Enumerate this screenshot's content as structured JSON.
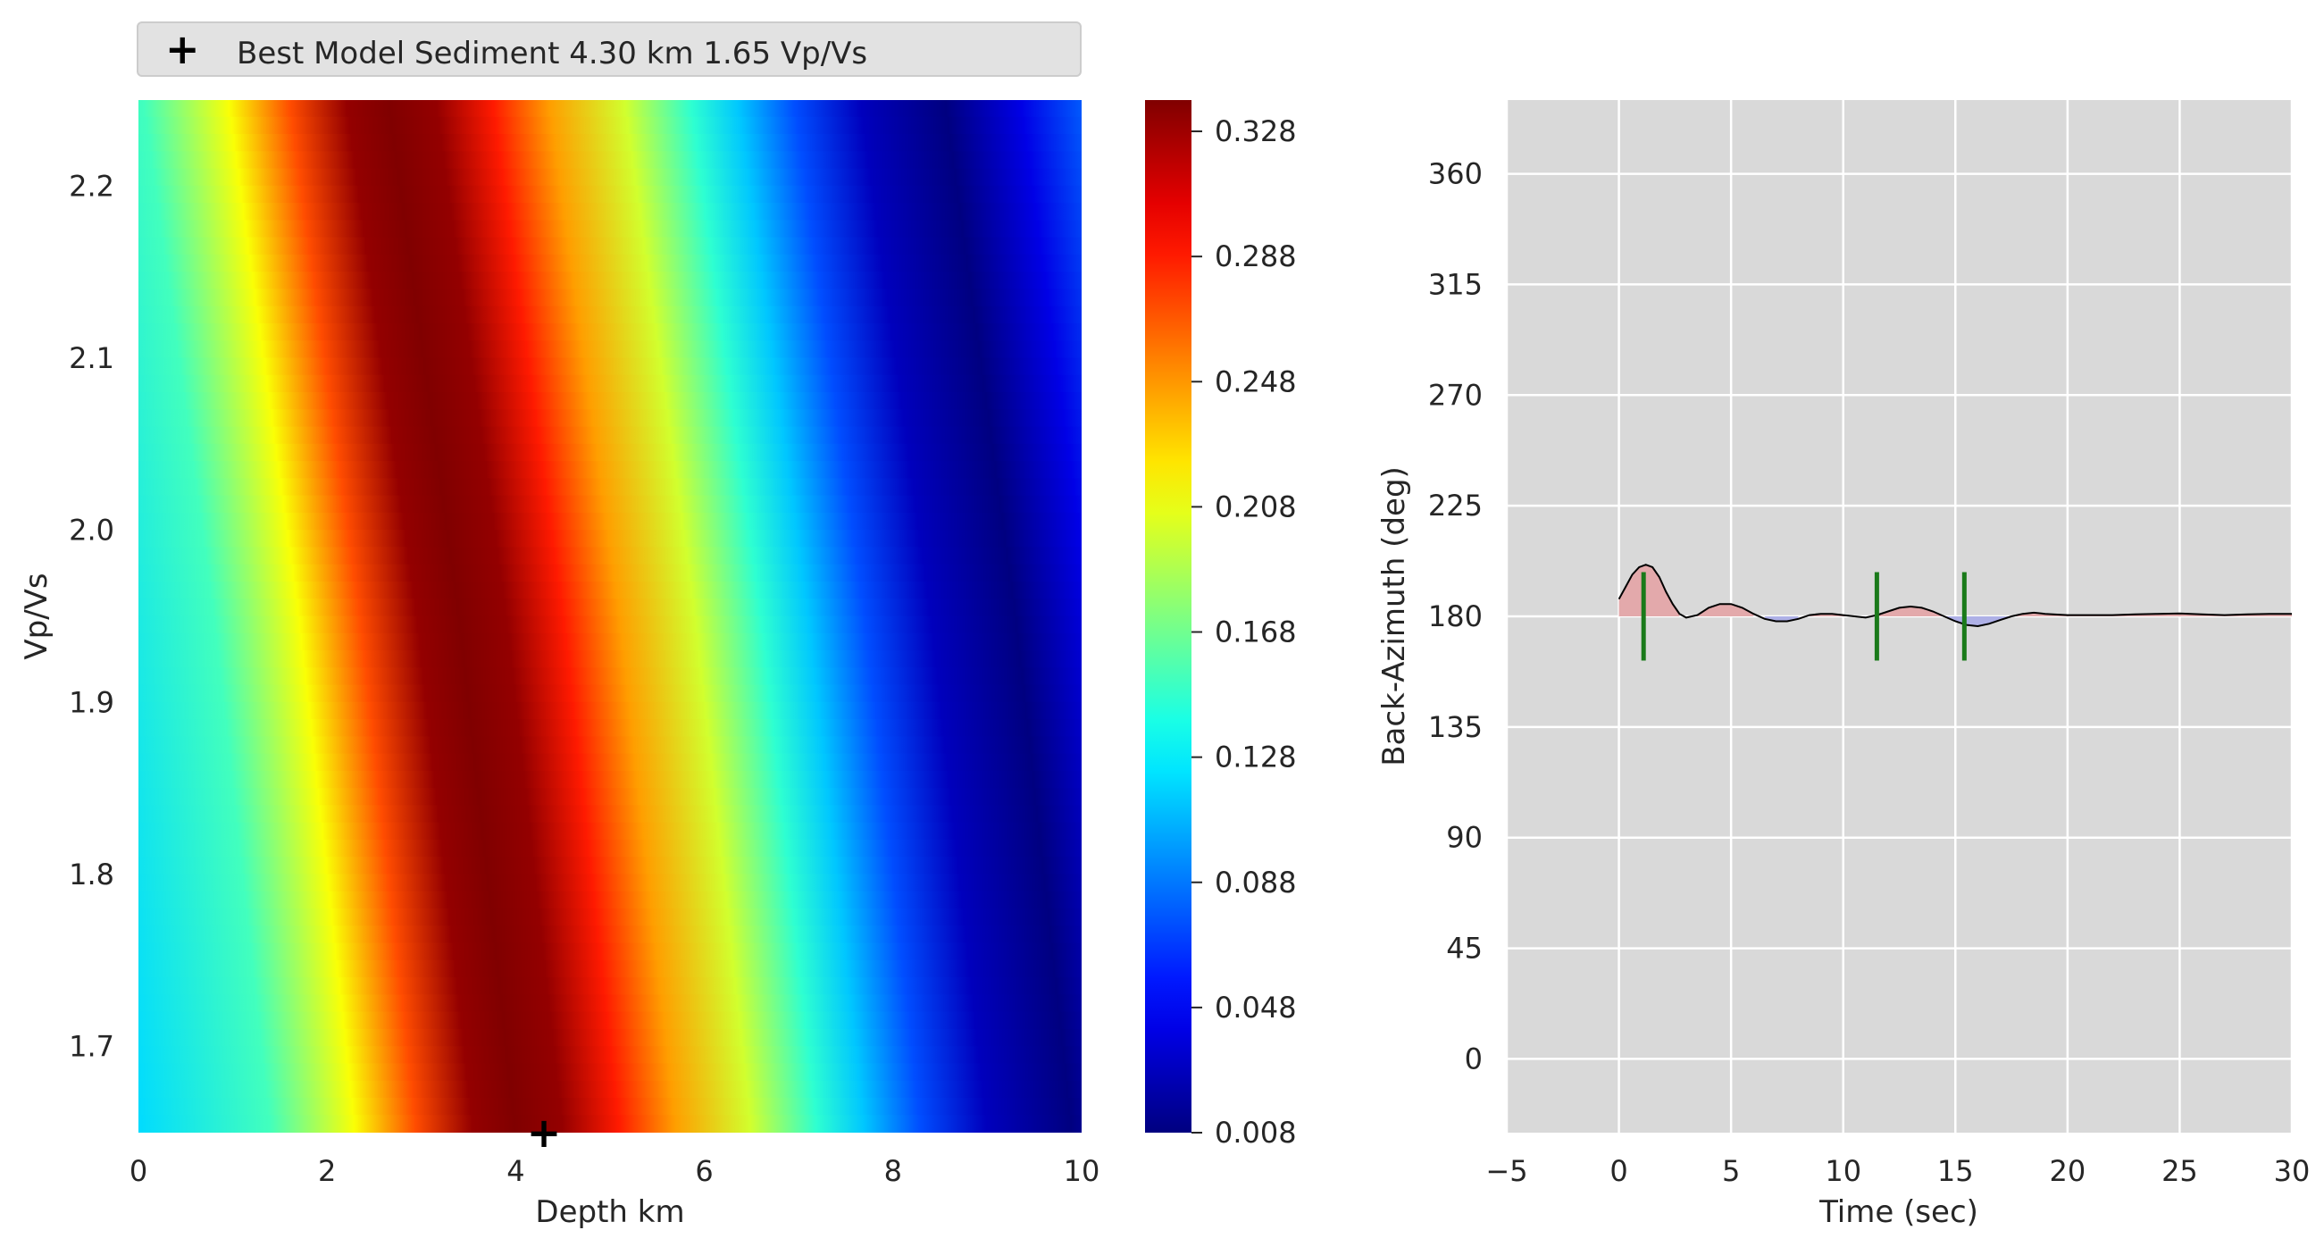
{
  "chart_data": [
    {
      "type": "heatmap",
      "xlabel": "Depth km",
      "ylabel": "Vp/Vs",
      "xlim": [
        0,
        10
      ],
      "ylim": [
        1.65,
        2.25
      ],
      "xticks": [
        0,
        2,
        4,
        6,
        8,
        10
      ],
      "yticks": [
        1.7,
        1.8,
        1.9,
        2.0,
        2.1,
        2.2
      ],
      "colormap": "jet",
      "color_range": [
        0.008,
        0.338
      ],
      "colorbar_ticks": [
        "0.008",
        "0.048",
        "0.088",
        "0.128",
        "0.168",
        "0.208",
        "0.248",
        "0.288",
        "0.328"
      ],
      "ridge_depth_at_vpvs": [
        {
          "vpvs": 1.65,
          "depth": 4.0
        },
        {
          "vpvs": 1.95,
          "depth": 3.4
        },
        {
          "vpvs": 2.25,
          "depth": 2.65
        }
      ],
      "legend": {
        "marker": "+",
        "label": "Best Model Sediment 4.30 km 1.65 Vp/Vs",
        "placement": "top"
      },
      "best_model": {
        "depth": 4.3,
        "vpvs": 1.65
      }
    },
    {
      "type": "line",
      "xlabel": "Time (sec)",
      "ylabel": "Back-Azimuth (deg)",
      "xlim": [
        -5,
        30
      ],
      "ylim": [
        -30,
        390
      ],
      "xticks": [
        -5,
        0,
        5,
        10,
        15,
        20,
        25,
        30
      ],
      "yticks": [
        0,
        45,
        90,
        135,
        180,
        225,
        270,
        315,
        360
      ],
      "grid": true,
      "trace_baseline": 180,
      "trace": [
        [
          0,
          187
        ],
        [
          0.3,
          192
        ],
        [
          0.6,
          197
        ],
        [
          0.9,
          200
        ],
        [
          1.2,
          201
        ],
        [
          1.5,
          200
        ],
        [
          1.8,
          196
        ],
        [
          2.1,
          190
        ],
        [
          2.4,
          185
        ],
        [
          2.7,
          181
        ],
        [
          3.0,
          179.5
        ],
        [
          3.5,
          180.5
        ],
        [
          4.0,
          183.5
        ],
        [
          4.5,
          185
        ],
        [
          5.0,
          185
        ],
        [
          5.5,
          183.5
        ],
        [
          6.0,
          181
        ],
        [
          6.5,
          179
        ],
        [
          7.0,
          178
        ],
        [
          7.5,
          178
        ],
        [
          8.0,
          179
        ],
        [
          8.5,
          180.5
        ],
        [
          9.0,
          181
        ],
        [
          9.5,
          181
        ],
        [
          10.0,
          180.5
        ],
        [
          10.5,
          180
        ],
        [
          11.0,
          179.5
        ],
        [
          11.5,
          180.5
        ],
        [
          12.0,
          182
        ],
        [
          12.5,
          183.5
        ],
        [
          13.0,
          184
        ],
        [
          13.5,
          183.5
        ],
        [
          14.0,
          182
        ],
        [
          14.5,
          180
        ],
        [
          15.0,
          178
        ],
        [
          15.5,
          176.5
        ],
        [
          16.0,
          176
        ],
        [
          16.5,
          177
        ],
        [
          17.0,
          178.5
        ],
        [
          17.5,
          180
        ],
        [
          18.0,
          181
        ],
        [
          18.5,
          181.5
        ],
        [
          19.0,
          181
        ],
        [
          20.0,
          180.5
        ],
        [
          21.0,
          180.5
        ],
        [
          22.0,
          180.5
        ],
        [
          23.0,
          180.8
        ],
        [
          24.0,
          181
        ],
        [
          25.0,
          181.2
        ],
        [
          26.0,
          180.8
        ],
        [
          27.0,
          180.5
        ],
        [
          28.0,
          180.8
        ],
        [
          29.0,
          181
        ],
        [
          30.0,
          181
        ]
      ],
      "phase_markers": [
        1.1,
        11.5,
        15.4
      ],
      "colors": {
        "positive": "#e3a9ab",
        "negative": "#aeb0e6",
        "trace": "#000000",
        "markers": "#1a7a1a",
        "background": "#d9d9d9",
        "grid": "#ffffff"
      }
    }
  ]
}
